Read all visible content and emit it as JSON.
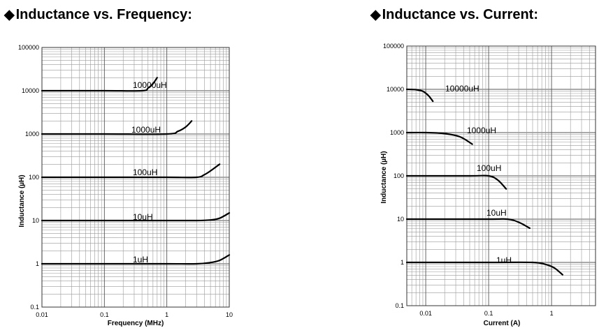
{
  "chart_data": [
    {
      "type": "line",
      "title": "Inductance vs. Frequency:",
      "xlabel": "Frequency (MHz)",
      "ylabel": "Inductance (µH)",
      "x_scale": "log",
      "y_scale": "log",
      "xlim": [
        0.01,
        10
      ],
      "ylim": [
        0.1,
        100000
      ],
      "x_ticks": [
        "0.01",
        "0.1",
        "1",
        "10"
      ],
      "y_ticks": [
        "0.1",
        "1",
        "10",
        "100",
        "1000",
        "10000",
        "100000"
      ],
      "grid": true,
      "series": [
        {
          "name": "1uH",
          "x": [
            0.01,
            0.1,
            1,
            3,
            5,
            7,
            10
          ],
          "y": [
            1,
            1,
            1,
            1,
            1.07,
            1.2,
            1.6
          ]
        },
        {
          "name": "10uH",
          "x": [
            0.01,
            0.1,
            1,
            3,
            5,
            7,
            10
          ],
          "y": [
            10,
            10,
            10,
            10,
            10.3,
            11.3,
            15
          ]
        },
        {
          "name": "100uH",
          "x": [
            0.01,
            0.1,
            1,
            3,
            4,
            5,
            7
          ],
          "y": [
            100,
            100,
            100,
            100,
            115,
            140,
            200
          ]
        },
        {
          "name": "1000uH",
          "x": [
            0.01,
            0.1,
            1,
            1.5,
            2,
            2.5
          ],
          "y": [
            1000,
            1000,
            1000,
            1150,
            1450,
            2000
          ]
        },
        {
          "name": "10000uH",
          "x": [
            0.01,
            0.1,
            0.4,
            0.5,
            0.6,
            0.7
          ],
          "y": [
            10000,
            10000,
            10000,
            11500,
            14500,
            20000
          ]
        }
      ]
    },
    {
      "type": "line",
      "title": "Inductance vs. Current:",
      "xlabel": "Current (A)",
      "ylabel": "Inductance (µH)",
      "x_scale": "log",
      "y_scale": "log",
      "xlim": [
        0.005,
        5
      ],
      "ylim": [
        0.1,
        100000
      ],
      "x_ticks": [
        "0.01",
        "0.1",
        "1"
      ],
      "y_ticks": [
        "0.1",
        "1",
        "10",
        "100",
        "1000",
        "10000",
        "100000"
      ],
      "grid": true,
      "series": [
        {
          "name": "1uH",
          "x": [
            0.005,
            0.1,
            0.5,
            0.8,
            1.1,
            1.5
          ],
          "y": [
            1,
            1,
            1,
            0.9,
            0.75,
            0.52
          ]
        },
        {
          "name": "10uH",
          "x": [
            0.005,
            0.1,
            0.2,
            0.3,
            0.45
          ],
          "y": [
            10,
            10,
            10,
            8.5,
            6.2
          ]
        },
        {
          "name": "100uH",
          "x": [
            0.005,
            0.05,
            0.1,
            0.14,
            0.19
          ],
          "y": [
            100,
            100,
            100,
            80,
            50
          ]
        },
        {
          "name": "1000uH",
          "x": [
            0.005,
            0.01,
            0.02,
            0.035,
            0.055
          ],
          "y": [
            1000,
            1000,
            950,
            800,
            540
          ]
        },
        {
          "name": "10000uH",
          "x": [
            0.005,
            0.007,
            0.009,
            0.011,
            0.013
          ],
          "y": [
            10000,
            9800,
            9000,
            7200,
            5300
          ]
        }
      ]
    }
  ]
}
